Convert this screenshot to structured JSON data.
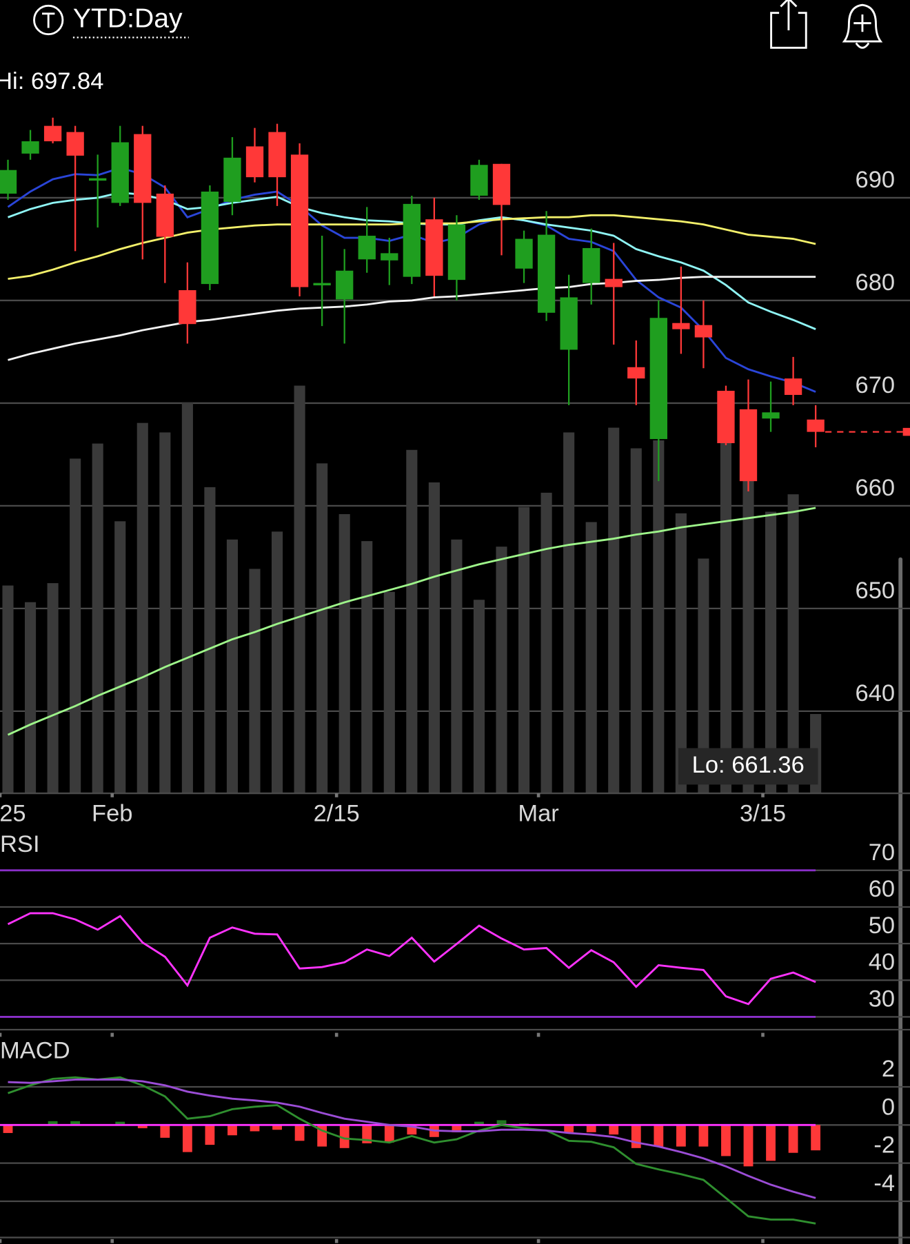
{
  "header": {
    "title": "YTD:Day"
  },
  "chart_data": [
    {
      "type": "candlestick",
      "hi_label": "Hi: 697.84",
      "lo_label": "Lo: 661.36",
      "categories": [
        "25",
        null,
        null,
        null,
        null,
        "Feb",
        null,
        null,
        null,
        null,
        null,
        null,
        null,
        null,
        null,
        "2/15",
        null,
        null,
        null,
        null,
        null,
        null,
        null,
        null,
        "Mar",
        null,
        null,
        null,
        null,
        null,
        null,
        null,
        null,
        null,
        "3/15",
        null,
        null
      ],
      "open": [
        690.4,
        694.3,
        697.0,
        696.4,
        691.8,
        689.5,
        696.2,
        690.4,
        681.0,
        681.6,
        689.6,
        695.0,
        696.4,
        694.2,
        681.6,
        680.1,
        684.0,
        683.9,
        682.3,
        687.9,
        682.0,
        690.2,
        693.3,
        683.1,
        678.8,
        675.2,
        681.7,
        682.1,
        673.5,
        666.5,
        677.8,
        677.6,
        671.2,
        669.4,
        668.5,
        672.4,
        668.4
      ],
      "high": [
        693.7,
        696.6,
        697.8,
        697.0,
        694.2,
        697.0,
        697.0,
        691.2,
        683.7,
        691.2,
        695.9,
        696.8,
        697.2,
        695.3,
        686.3,
        685.0,
        689.1,
        686.1,
        690.2,
        690.0,
        688.3,
        693.7,
        693.3,
        686.8,
        688.7,
        682.5,
        687.0,
        685.6,
        676.1,
        680.0,
        683.3,
        680.0,
        671.7,
        672.3,
        672.1,
        674.5,
        669.8
      ],
      "low": [
        689.8,
        693.7,
        695.3,
        684.8,
        687.1,
        689.2,
        684.0,
        681.7,
        675.8,
        681.0,
        688.3,
        691.5,
        689.2,
        680.4,
        677.5,
        675.8,
        682.7,
        681.5,
        681.6,
        680.4,
        680.0,
        689.8,
        684.4,
        681.7,
        678.0,
        669.8,
        679.6,
        675.7,
        669.8,
        662.4,
        674.8,
        673.4,
        665.9,
        661.4,
        667.2,
        669.8,
        665.7
      ],
      "close": [
        692.7,
        695.5,
        695.5,
        694.1,
        691.9,
        695.4,
        689.5,
        686.2,
        677.7,
        690.6,
        693.9,
        692.0,
        692.0,
        681.3,
        681.7,
        682.9,
        686.3,
        684.6,
        689.4,
        682.4,
        687.4,
        693.2,
        689.3,
        686.0,
        686.4,
        680.3,
        685.1,
        681.3,
        672.4,
        678.3,
        677.2,
        676.4,
        666.1,
        662.4,
        669.1,
        670.8,
        667.2
      ],
      "up_color": "#1f9e1f",
      "down_color": "#ff3838",
      "lines": [
        {
          "color": "#2a45d8",
          "values": [
            689.1,
            690.6,
            691.8,
            692.3,
            692.2,
            692.9,
            692.3,
            691.0,
            688.1,
            688.9,
            689.8,
            690.3,
            690.6,
            689.2,
            687.3,
            686.1,
            686.1,
            685.8,
            686.4,
            685.6,
            686.1,
            687.4,
            688.1,
            687.8,
            687.3,
            686.0,
            685.7,
            684.8,
            682.0,
            680.3,
            679.3,
            677.1,
            674.4,
            673.3,
            672.6,
            672.0,
            671.1
          ]
        },
        {
          "color": "#8ff5f5",
          "values": [
            688.1,
            688.9,
            689.5,
            689.8,
            690.0,
            690.5,
            690.3,
            689.8,
            688.9,
            689.1,
            689.5,
            689.8,
            690.1,
            689.1,
            688.5,
            688.1,
            687.8,
            687.7,
            687.5,
            687.4,
            687.4,
            687.8,
            688.1,
            687.8,
            687.4,
            687.1,
            686.8,
            686.3,
            685.0,
            684.3,
            683.7,
            682.9,
            681.5,
            679.8,
            678.9,
            678.1,
            677.2
          ]
        },
        {
          "color": "#f2ef6a",
          "values": [
            682.1,
            682.4,
            683.0,
            683.7,
            684.3,
            685.0,
            685.6,
            686.1,
            686.6,
            686.9,
            687.1,
            687.3,
            687.4,
            687.4,
            687.4,
            687.4,
            687.4,
            687.4,
            687.5,
            687.5,
            687.5,
            687.7,
            687.9,
            688.0,
            688.1,
            688.1,
            688.3,
            688.3,
            688.1,
            687.9,
            687.7,
            687.4,
            686.9,
            686.4,
            686.2,
            686.0,
            685.5
          ]
        },
        {
          "color": "#f2f2f2",
          "values": [
            674.2,
            674.8,
            675.3,
            675.8,
            676.2,
            676.6,
            677.1,
            677.5,
            677.9,
            678.1,
            678.4,
            678.7,
            679.0,
            679.2,
            679.3,
            679.4,
            679.6,
            679.9,
            680.0,
            680.3,
            680.4,
            680.6,
            680.8,
            681.0,
            681.2,
            681.3,
            681.6,
            681.7,
            681.9,
            682.0,
            682.2,
            682.3,
            682.3,
            682.3,
            682.3,
            682.3,
            682.3
          ]
        },
        {
          "color": "#9ef58a",
          "values": [
            637.7,
            638.7,
            639.6,
            640.5,
            641.5,
            642.4,
            643.3,
            644.3,
            645.2,
            646.1,
            647.0,
            647.7,
            648.5,
            649.2,
            649.9,
            650.6,
            651.2,
            651.8,
            652.4,
            653.1,
            653.7,
            654.3,
            654.8,
            655.3,
            655.8,
            656.2,
            656.5,
            656.8,
            657.2,
            657.5,
            657.9,
            658.2,
            658.5,
            658.8,
            659.1,
            659.4,
            659.8
          ]
        }
      ],
      "volume": [
        262,
        241,
        265,
        422,
        441,
        343,
        467,
        455,
        493,
        386,
        320,
        283,
        330,
        514,
        416,
        352,
        318,
        254,
        433,
        392,
        320,
        244,
        311,
        361,
        379,
        455,
        342,
        461,
        435,
        445,
        353,
        296,
        445,
        400,
        355,
        377,
        100
      ],
      "volume_color": "#3a3a3a",
      "ylim": [
        632,
        699.2
      ],
      "yticks": [
        640,
        650,
        660,
        670,
        680,
        690
      ],
      "grid": true
    },
    {
      "type": "line",
      "title": "RSI",
      "ylim": [
        26.5,
        80.2
      ],
      "yticks": [
        30,
        40,
        50,
        60,
        70
      ],
      "grid": true,
      "levels": [
        30,
        70
      ],
      "level_color": "#8a2fc9",
      "series": [
        {
          "color": "#ff33ff",
          "values": [
            55.3,
            58.3,
            58.3,
            56.6,
            53.8,
            57.5,
            50.3,
            46.4,
            38.6,
            51.6,
            54.4,
            52.7,
            52.5,
            43.2,
            43.6,
            44.9,
            48.4,
            46.6,
            51.6,
            45.1,
            49.9,
            54.9,
            51.4,
            48.4,
            48.8,
            43.4,
            48.2,
            44.9,
            38.2,
            44.1,
            43.4,
            42.8,
            35.6,
            33.5,
            40.4,
            42.1,
            39.5
          ]
        }
      ]
    },
    {
      "type": "macd",
      "title": "MACD",
      "ylim": [
        -5.9,
        4.5
      ],
      "yticks": [
        -4,
        -2,
        0,
        2
      ],
      "grid": true,
      "zero_color": "#ff33ff",
      "series": [
        {
          "color": "#2f8f2f",
          "values": [
            1.67,
            2.08,
            2.42,
            2.5,
            2.38,
            2.5,
            2.08,
            1.5,
            0.33,
            0.46,
            0.83,
            0.96,
            1.04,
            0.33,
            -0.29,
            -0.71,
            -0.79,
            -0.92,
            -0.58,
            -0.92,
            -0.75,
            -0.29,
            0,
            -0.17,
            -0.29,
            -0.83,
            -0.88,
            -1.17,
            -2.04,
            -2.33,
            -2.58,
            -2.88,
            -3.83,
            -4.79,
            -4.96,
            -4.96,
            -5.17
          ]
        },
        {
          "color": "#9b4dd6",
          "values": [
            2.25,
            2.21,
            2.29,
            2.38,
            2.38,
            2.38,
            2.29,
            2.08,
            1.75,
            1.54,
            1.38,
            1.29,
            1.17,
            0.96,
            0.63,
            0.33,
            0.17,
            0,
            -0.08,
            -0.29,
            -0.33,
            -0.33,
            -0.25,
            -0.25,
            -0.29,
            -0.42,
            -0.5,
            -0.63,
            -0.92,
            -1.13,
            -1.42,
            -1.75,
            -2.17,
            -2.67,
            -3.13,
            -3.5,
            -3.83
          ]
        }
      ],
      "histogram": [
        -0.42,
        0,
        0.2,
        0.2,
        0,
        0.17,
        -0.17,
        -0.67,
        -1.42,
        -1.04,
        -0.54,
        -0.33,
        -0.25,
        -0.83,
        -1.13,
        -1.21,
        -0.96,
        -0.92,
        -0.5,
        -0.63,
        -0.38,
        0.17,
        0.25,
        0.08,
        0,
        -0.38,
        -0.38,
        -0.5,
        -1.21,
        -1.13,
        -1.13,
        -1.13,
        -1.63,
        -2.17,
        -1.88,
        -1.46,
        -1.33
      ],
      "up_color": "#1f7a1f",
      "down_color": "#ff3838"
    }
  ]
}
